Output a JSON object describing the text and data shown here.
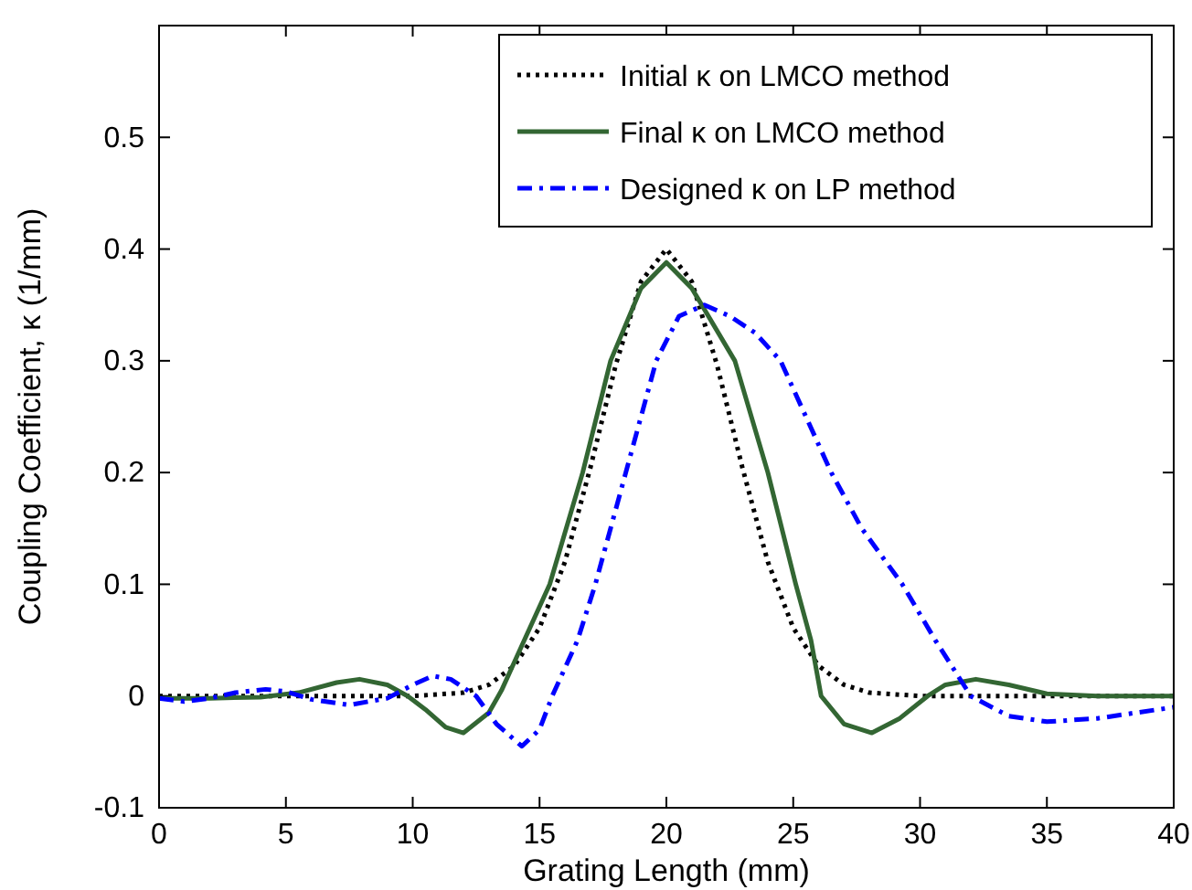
{
  "chart_data": {
    "type": "line",
    "xlabel": "Grating Length (mm)",
    "ylabel": "Coupling Coefficient, κ (1/mm)",
    "xlim": [
      0,
      40
    ],
    "xticks": [
      0,
      5,
      10,
      15,
      20,
      25,
      30,
      35,
      40
    ],
    "ylim": [
      -0.1,
      0.6
    ],
    "yticks": [
      -0.1,
      0,
      0.1,
      0.2,
      0.3,
      0.4,
      0.5
    ],
    "grid": false,
    "legend": "top right",
    "marker": "none",
    "series": [
      {
        "name": "Initial κ on LMCO method",
        "color": "#000000",
        "line_style": "dotted",
        "x": [
          0,
          5,
          10,
          12,
          13,
          14,
          15,
          16,
          17,
          18,
          19,
          20,
          21,
          22,
          23,
          24,
          25,
          26,
          27,
          28,
          30,
          35,
          40
        ],
        "values": [
          0,
          0,
          0,
          0.003,
          0.01,
          0.027,
          0.061,
          0.12,
          0.204,
          0.296,
          0.371,
          0.4,
          0.371,
          0.296,
          0.204,
          0.12,
          0.061,
          0.027,
          0.01,
          0.003,
          0,
          0,
          0
        ]
      },
      {
        "name": "Final κ on LMCO method",
        "color": "#336633",
        "line_style": "solid",
        "x": [
          0,
          2,
          4,
          5.5,
          7,
          7.9,
          9,
          9.8,
          10.5,
          11.3,
          12,
          13,
          13.5,
          14,
          14.4,
          15.4,
          16.7,
          17.8,
          19,
          20,
          21,
          22.7,
          24,
          25.1,
          25.7,
          26.1,
          27,
          28.1,
          29.2,
          30.3,
          31,
          32.2,
          33.5,
          35,
          37,
          40
        ],
        "values": [
          -0.002,
          -0.002,
          -0.001,
          0.003,
          0.012,
          0.015,
          0.01,
          0,
          -0.012,
          -0.028,
          -0.033,
          -0.015,
          0.005,
          0.03,
          0.05,
          0.1,
          0.2,
          0.3,
          0.365,
          0.388,
          0.365,
          0.3,
          0.2,
          0.1,
          0.05,
          0,
          -0.025,
          -0.033,
          -0.02,
          0,
          0.01,
          0.015,
          0.01,
          0.002,
          0,
          0
        ]
      },
      {
        "name": "Designed κ on LP method",
        "color": "#0000ff",
        "line_style": "dashdot",
        "x": [
          0,
          1,
          2,
          3,
          4.2,
          5,
          6,
          7.5,
          9,
          10,
          10.8,
          11.5,
          12.5,
          13.3,
          14.3,
          15,
          15.5,
          16.5,
          17.2,
          18.4,
          19.6,
          20.5,
          21.5,
          22.5,
          23.5,
          24.5,
          26.5,
          27.7,
          29.3,
          30.6,
          32,
          33.5,
          35,
          37,
          40
        ],
        "values": [
          -0.002,
          -0.005,
          -0.002,
          0.003,
          0.006,
          0.004,
          -0.003,
          -0.008,
          -0.002,
          0.01,
          0.018,
          0.015,
          0,
          -0.025,
          -0.045,
          -0.03,
          0,
          0.05,
          0.1,
          0.2,
          0.3,
          0.34,
          0.35,
          0.34,
          0.325,
          0.3,
          0.2,
          0.15,
          0.1,
          0.05,
          0,
          -0.018,
          -0.023,
          -0.02,
          -0.01
        ]
      }
    ]
  }
}
